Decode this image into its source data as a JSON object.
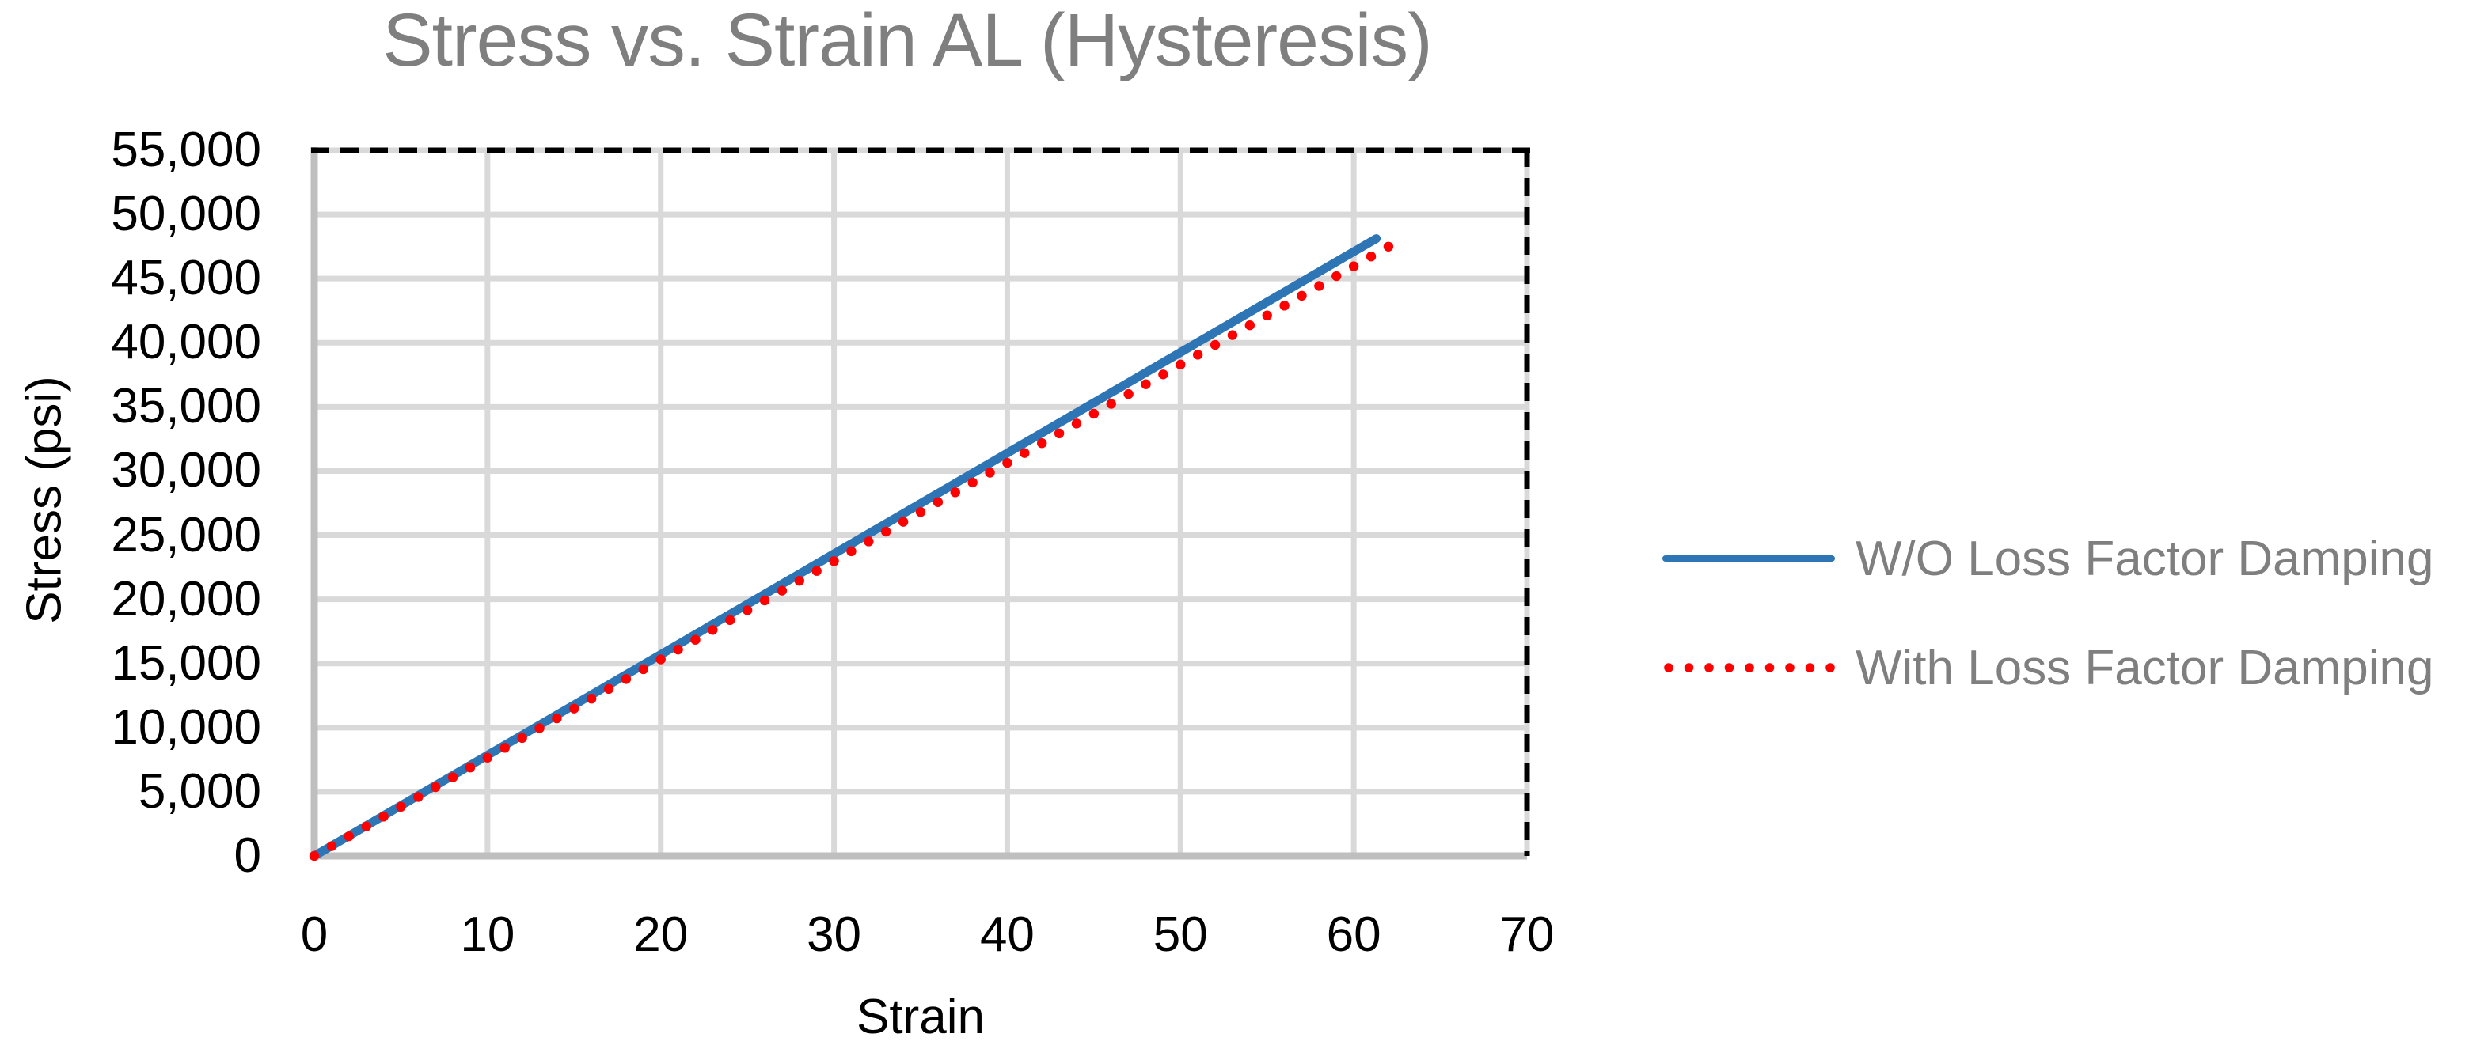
{
  "chart": {
    "title": "Stress vs. Strain AL (Hysteresis)",
    "x_axis": {
      "label": "Strain",
      "min": 0,
      "max": 70,
      "tick_values": [
        0,
        10,
        20,
        30,
        40,
        50,
        60,
        70
      ],
      "tick_labels": [
        "0",
        "10",
        "20",
        "30",
        "40",
        "50",
        "60",
        "70"
      ]
    },
    "y_axis": {
      "label": "Stress (psi)",
      "min": 0,
      "max": 55000,
      "tick_values": [
        0,
        5000,
        10000,
        15000,
        20000,
        25000,
        30000,
        35000,
        40000,
        45000,
        50000,
        55000
      ],
      "tick_labels": [
        "0",
        "5,000",
        "10,000",
        "15,000",
        "20,000",
        "25,000",
        "30,000",
        "35,000",
        "40,000",
        "45,000",
        "50,000",
        "55,000"
      ]
    },
    "legend": [
      {
        "label": "W/O Loss Factor Damping",
        "color": "#2E75B6",
        "marker": "solid-line"
      },
      {
        "label": "With Loss Factor Damping",
        "color": "#FF0000",
        "marker": "dotted-line"
      }
    ],
    "colors": {
      "title_text": "#7f7f7f",
      "legend_text": "#7f7f7f",
      "tick_text": "#000000",
      "gridline": "#D9D9D9",
      "axis_line": "#BFBFBF",
      "border_dash": "#000000",
      "series_blue": "#2E75B6",
      "series_red": "#FF0000"
    }
  },
  "chart_data": {
    "type": "line",
    "title": "Stress vs. Strain AL (Hysteresis)",
    "xlabel": "Strain",
    "ylabel": "Stress (psi)",
    "xlim": [
      0,
      70
    ],
    "ylim": [
      0,
      55000
    ],
    "grid": true,
    "legend_position": "right",
    "border": "dashed top and right, solid gray left and bottom axes",
    "series": [
      {
        "name": "W/O Loss Factor Damping",
        "style": "solid line",
        "color": "#2E75B6",
        "x": [
          0,
          10,
          20,
          30,
          40,
          50,
          60,
          61.3
        ],
        "y": [
          0,
          7850,
          15700,
          23550,
          31400,
          39250,
          47100,
          48120
        ]
      },
      {
        "name": "With Loss Factor Damping",
        "style": "dotted (round markers)",
        "color": "#FF0000",
        "x": [
          0,
          1,
          2,
          3,
          4,
          5,
          6,
          7,
          8,
          9,
          10,
          11,
          12,
          13,
          14,
          15,
          16,
          17,
          18,
          19,
          20,
          21,
          22,
          23,
          24,
          25,
          26,
          27,
          28,
          29,
          30,
          31,
          32,
          33,
          34,
          35,
          36,
          37,
          38,
          39,
          40,
          41,
          42,
          43,
          44,
          45,
          46,
          47,
          48,
          49,
          50,
          51,
          52,
          53,
          54,
          55,
          56,
          57,
          58,
          59,
          60,
          61,
          62
        ],
        "y": [
          0,
          766,
          1532,
          2298,
          3064,
          3830,
          4596,
          5362,
          6128,
          6894,
          7660,
          8426,
          9192,
          9958,
          10724,
          11490,
          12256,
          13022,
          13788,
          14554,
          15320,
          16086,
          16852,
          17618,
          18384,
          19150,
          19916,
          20682,
          21448,
          22214,
          22980,
          23746,
          24512,
          25278,
          26044,
          26810,
          27576,
          28342,
          29108,
          29874,
          30640,
          31406,
          32172,
          32938,
          33704,
          34470,
          35236,
          36002,
          36768,
          37534,
          38300,
          39066,
          39832,
          40598,
          41364,
          42130,
          42896,
          43662,
          44428,
          45194,
          45960,
          46726,
          47492
        ]
      }
    ]
  }
}
